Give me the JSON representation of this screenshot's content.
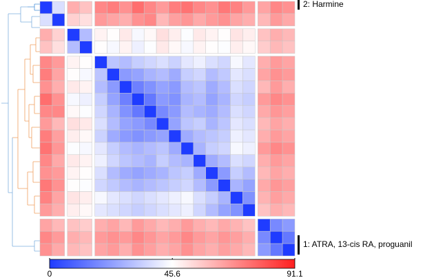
{
  "chart_data": {
    "type": "heatmap",
    "matrix": [
      [
        0,
        38,
        62,
        58,
        70,
        72,
        68,
        75,
        70,
        66,
        72,
        74,
        70,
        68,
        73,
        71,
        66,
        64,
        70,
        68
      ],
      [
        38,
        0,
        55,
        52,
        66,
        64,
        62,
        68,
        70,
        60,
        65,
        67,
        63,
        66,
        68,
        64,
        62,
        60,
        66,
        63
      ],
      [
        62,
        55,
        0,
        30,
        48,
        46,
        50,
        44,
        47,
        52,
        49,
        45,
        50,
        48,
        46,
        51,
        49,
        58,
        62,
        60
      ],
      [
        58,
        52,
        30,
        0,
        46,
        44,
        48,
        42,
        45,
        50,
        47,
        44,
        48,
        46,
        45,
        49,
        47,
        56,
        60,
        58
      ],
      [
        70,
        66,
        48,
        46,
        0,
        32,
        30,
        34,
        36,
        38,
        35,
        40,
        42,
        38,
        36,
        44,
        40,
        62,
        66,
        64
      ],
      [
        72,
        64,
        46,
        44,
        32,
        0,
        22,
        24,
        28,
        30,
        26,
        34,
        36,
        30,
        33,
        40,
        38,
        64,
        68,
        66
      ],
      [
        68,
        62,
        50,
        48,
        30,
        22,
        0,
        16,
        20,
        24,
        22,
        30,
        32,
        26,
        30,
        38,
        36,
        60,
        66,
        62
      ],
      [
        75,
        68,
        44,
        42,
        34,
        24,
        16,
        0,
        14,
        22,
        20,
        28,
        30,
        24,
        28,
        36,
        34,
        66,
        70,
        68
      ],
      [
        70,
        70,
        47,
        45,
        36,
        28,
        20,
        14,
        0,
        18,
        22,
        30,
        28,
        26,
        30,
        38,
        36,
        63,
        67,
        65
      ],
      [
        66,
        60,
        52,
        50,
        38,
        30,
        24,
        22,
        18,
        0,
        24,
        32,
        34,
        28,
        32,
        40,
        38,
        60,
        64,
        62
      ],
      [
        72,
        65,
        49,
        47,
        35,
        26,
        22,
        20,
        22,
        24,
        0,
        26,
        30,
        32,
        34,
        42,
        40,
        62,
        66,
        64
      ],
      [
        74,
        67,
        45,
        44,
        40,
        34,
        30,
        28,
        30,
        32,
        26,
        0,
        28,
        34,
        36,
        44,
        42,
        66,
        70,
        68
      ],
      [
        70,
        63,
        50,
        48,
        42,
        36,
        32,
        30,
        28,
        34,
        30,
        28,
        0,
        26,
        30,
        38,
        36,
        62,
        66,
        64
      ],
      [
        68,
        66,
        48,
        46,
        38,
        30,
        26,
        24,
        26,
        28,
        32,
        34,
        26,
        0,
        22,
        34,
        30,
        60,
        64,
        62
      ],
      [
        73,
        68,
        46,
        45,
        36,
        33,
        30,
        28,
        30,
        32,
        34,
        36,
        30,
        22,
        0,
        28,
        24,
        63,
        67,
        65
      ],
      [
        71,
        64,
        51,
        49,
        44,
        40,
        38,
        36,
        38,
        40,
        42,
        44,
        38,
        34,
        28,
        0,
        20,
        61,
        65,
        63
      ],
      [
        66,
        62,
        49,
        47,
        40,
        38,
        36,
        34,
        36,
        38,
        40,
        42,
        36,
        30,
        24,
        20,
        0,
        58,
        62,
        60
      ],
      [
        64,
        60,
        58,
        56,
        62,
        64,
        60,
        66,
        63,
        60,
        62,
        66,
        62,
        60,
        63,
        61,
        58,
        0,
        18,
        22
      ],
      [
        70,
        66,
        62,
        60,
        66,
        68,
        66,
        70,
        67,
        64,
        66,
        70,
        66,
        64,
        67,
        65,
        62,
        18,
        0,
        14
      ],
      [
        68,
        63,
        60,
        58,
        64,
        66,
        62,
        68,
        65,
        62,
        64,
        68,
        64,
        62,
        65,
        63,
        60,
        22,
        14,
        0
      ]
    ],
    "colors": [
      "#1f3cff",
      "#ffffff",
      "#ff1f1f"
    ],
    "clim": [
      0,
      91.1
    ],
    "colorbar_ticks": [
      0,
      45.6,
      91.1
    ],
    "annotations": [
      "2: Harmine",
      "1: ATRA, 13-cis RA, proguanil"
    ]
  }
}
